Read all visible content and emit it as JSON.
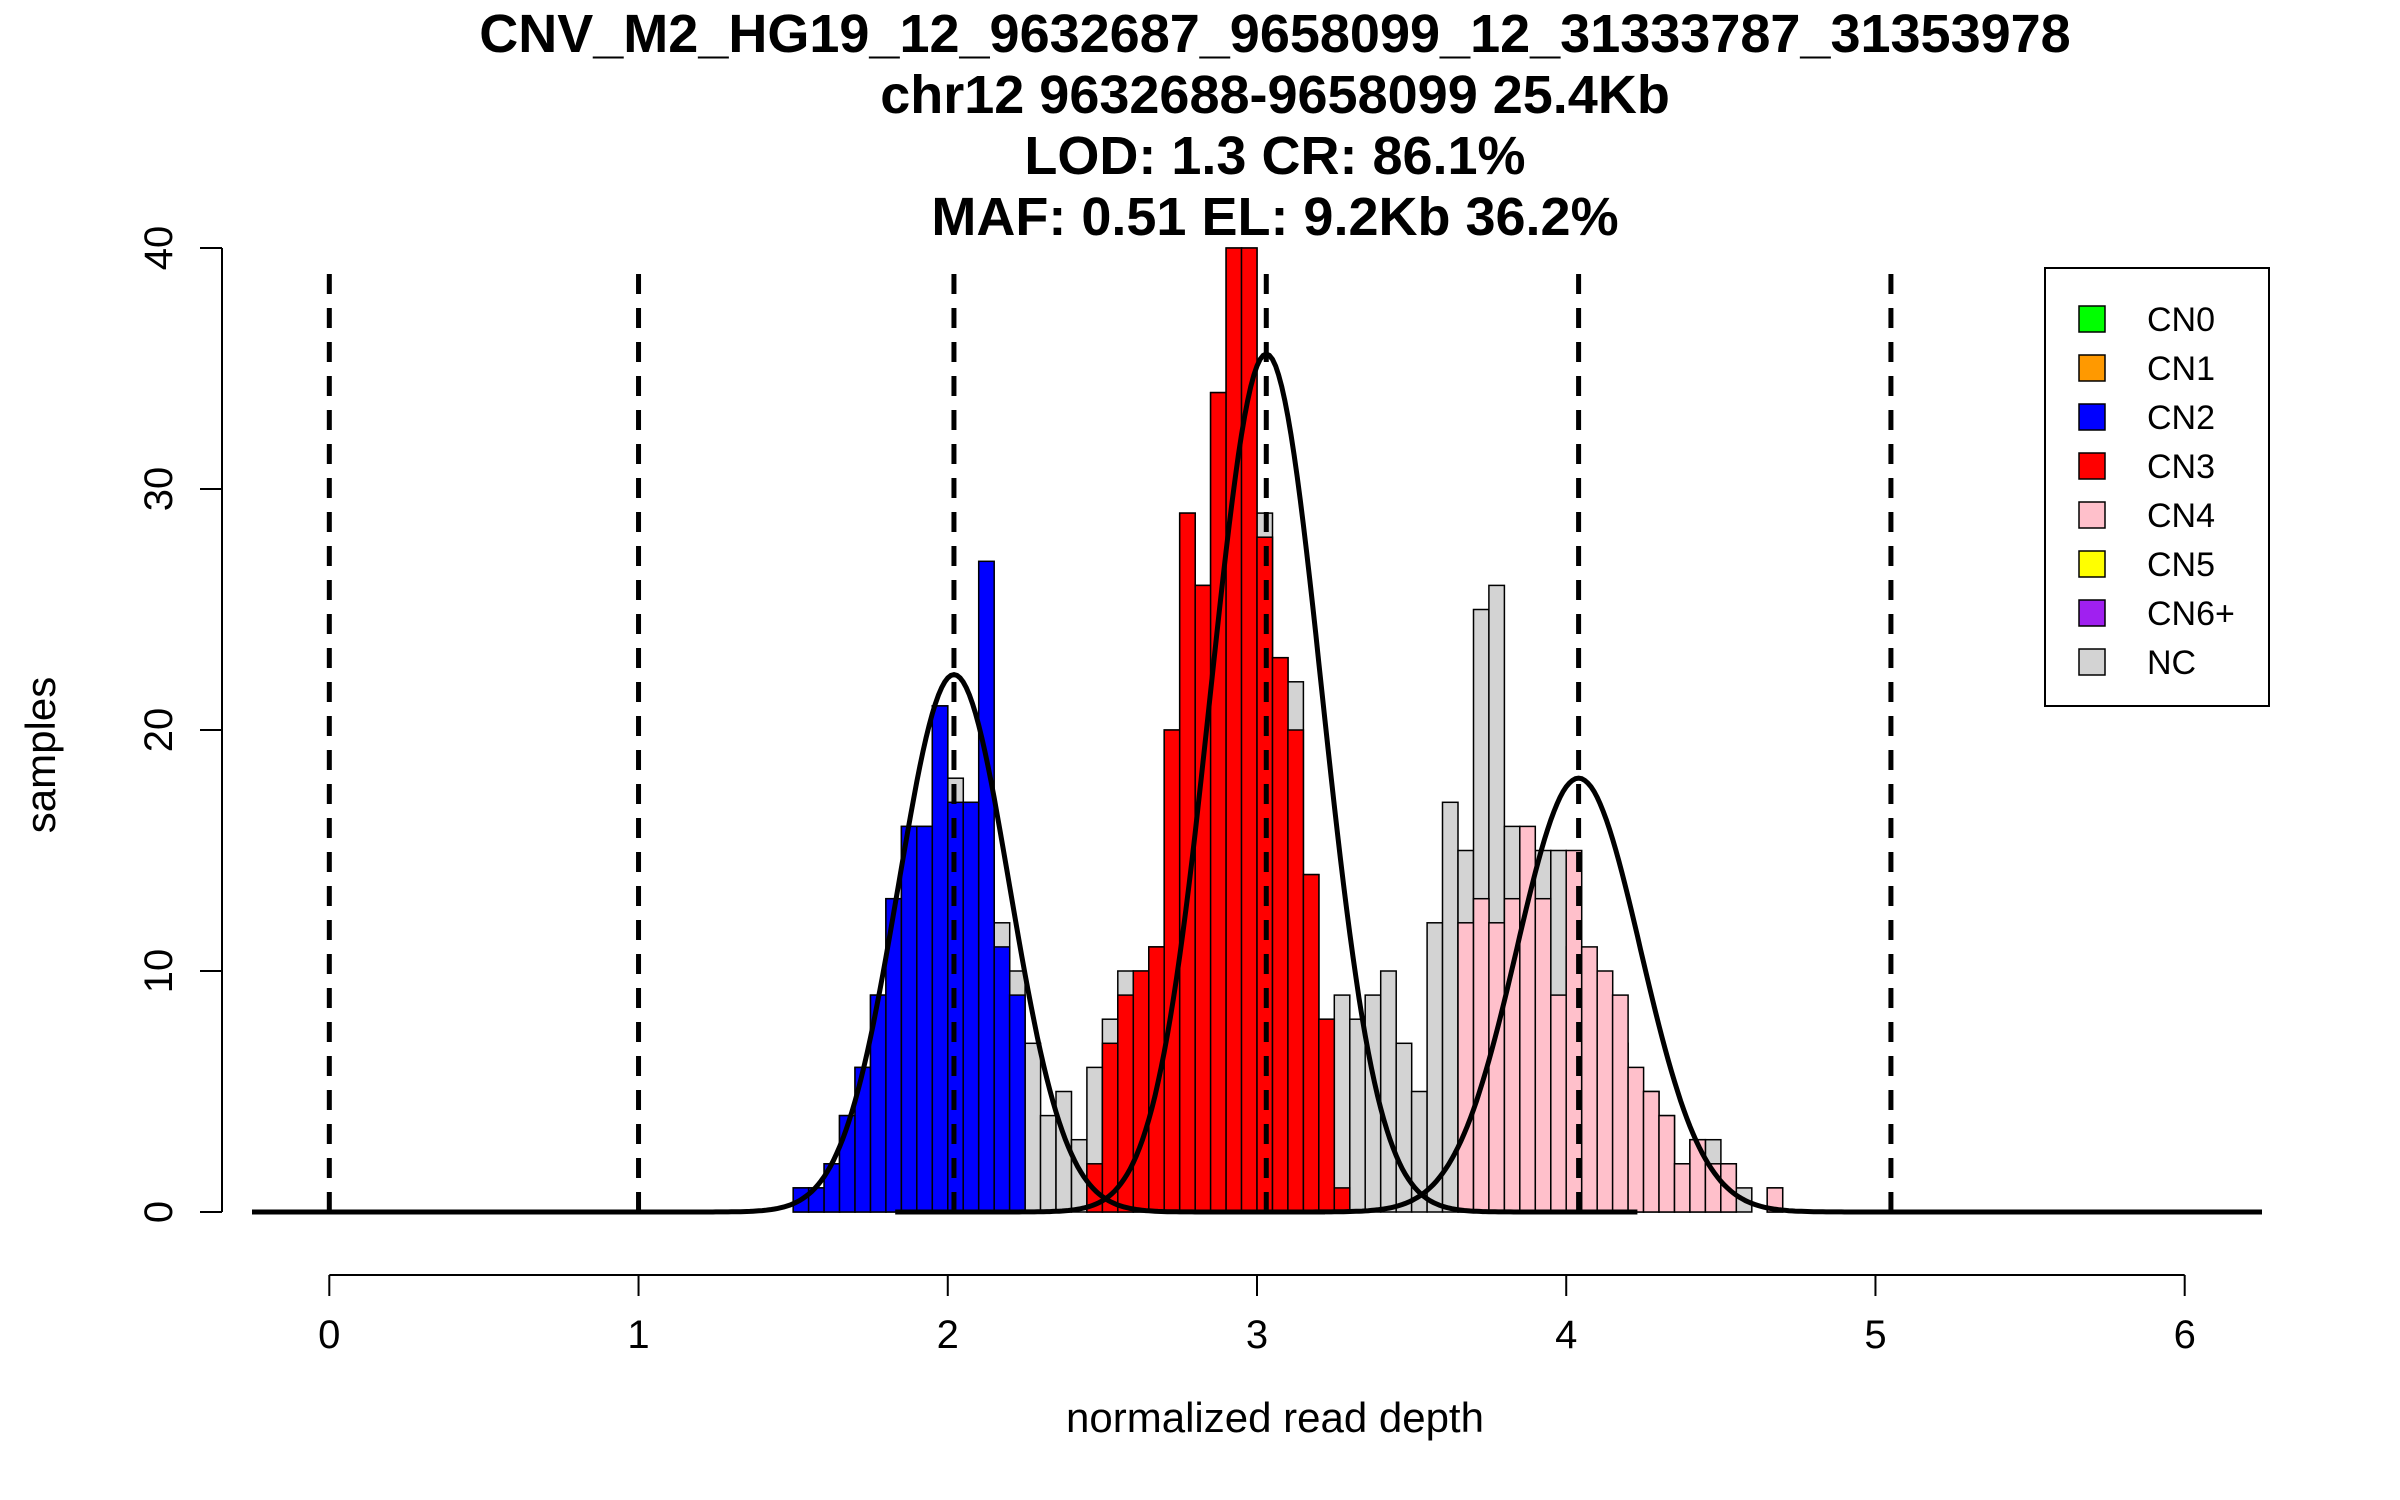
{
  "chart_data": {
    "type": "bar",
    "title_lines": [
      "CNV_M2_HG19_12_9632687_9658099_12_31333787_31353978",
      "chr12 9632688-9658099 25.4Kb",
      "LOD: 1.3 CR: 86.1%",
      "MAF: 0.51 EL: 9.2Kb 36.2%"
    ],
    "xlabel": "normalized read depth",
    "ylabel": "samples",
    "xlim": [
      -0.25,
      6.25
    ],
    "ylim": [
      0,
      40
    ],
    "x_ticks": [
      0,
      1,
      2,
      3,
      4,
      5,
      6
    ],
    "y_ticks": [
      0,
      10,
      20,
      30,
      40
    ],
    "bin_width": 0.05,
    "bin_start": 1.5,
    "reference_lines": [
      0,
      1,
      2.02,
      3.03,
      4.04,
      5.05
    ],
    "legend": {
      "position": "top-right",
      "entries": [
        {
          "label": "CN0",
          "color": "#00ff00"
        },
        {
          "label": "CN1",
          "color": "#ff9900"
        },
        {
          "label": "CN2",
          "color": "#0000ff"
        },
        {
          "label": "CN3",
          "color": "#ff0000"
        },
        {
          "label": "CN4",
          "color": "#ffc0cb"
        },
        {
          "label": "CN5",
          "color": "#ffff00"
        },
        {
          "label": "CN6+",
          "color": "#a020f0"
        },
        {
          "label": "NC",
          "color": "#d3d3d3"
        }
      ]
    },
    "series": [
      {
        "name": "NC",
        "color": "#d3d3d3",
        "values": [
          1,
          1,
          2,
          4,
          6,
          9,
          13,
          16,
          16,
          21,
          18,
          17,
          15,
          12,
          10,
          7,
          4,
          5,
          3,
          6,
          8,
          10,
          10,
          11,
          20,
          29,
          26,
          34,
          40,
          40,
          29,
          23,
          22,
          14,
          8,
          9,
          8,
          9,
          10,
          7,
          5,
          12,
          17,
          15,
          25,
          26,
          16,
          13,
          15,
          15,
          11,
          10,
          8,
          7,
          5,
          5,
          4,
          2,
          3,
          3,
          2,
          1,
          0,
          1
        ]
      },
      {
        "name": "CN2",
        "color": "#0000ff",
        "values": [
          1,
          1,
          2,
          4,
          6,
          9,
          13,
          16,
          16,
          21,
          17,
          17,
          27,
          11,
          9,
          0,
          0,
          0,
          0,
          0,
          0,
          0,
          0,
          0,
          0,
          0,
          0,
          0,
          0,
          0,
          0,
          0,
          0,
          0,
          0,
          0,
          0,
          0,
          0,
          0,
          0,
          0,
          0,
          0,
          0,
          0,
          0,
          0,
          0,
          0,
          0,
          0,
          0,
          0,
          0,
          0,
          0,
          0,
          0,
          0,
          0,
          0,
          0,
          0
        ]
      },
      {
        "name": "CN3",
        "color": "#ff0000",
        "values": [
          0,
          0,
          0,
          0,
          0,
          0,
          0,
          0,
          0,
          0,
          0,
          0,
          0,
          0,
          0,
          0,
          0,
          0,
          0,
          2,
          7,
          9,
          10,
          11,
          20,
          29,
          26,
          34,
          40,
          40,
          28,
          23,
          20,
          14,
          8,
          1,
          0,
          0,
          0,
          0,
          0,
          0,
          0,
          0,
          0,
          0,
          0,
          0,
          0,
          0,
          0,
          0,
          0,
          0,
          0,
          0,
          0,
          0,
          0,
          0,
          0,
          0,
          0,
          0
        ]
      },
      {
        "name": "CN4",
        "color": "#ffc0cb",
        "values": [
          0,
          0,
          0,
          0,
          0,
          0,
          0,
          0,
          0,
          0,
          0,
          0,
          0,
          0,
          0,
          0,
          0,
          0,
          0,
          0,
          0,
          0,
          0,
          0,
          0,
          0,
          0,
          0,
          0,
          0,
          0,
          0,
          0,
          0,
          0,
          0,
          0,
          0,
          0,
          0,
          0,
          0,
          0,
          12,
          13,
          12,
          13,
          16,
          13,
          9,
          15,
          11,
          10,
          9,
          6,
          5,
          4,
          2,
          3,
          2,
          2,
          0,
          0,
          1
        ]
      }
    ],
    "fitted_curves": [
      {
        "mean": 2.02,
        "sd": 0.18,
        "peak": 22.3
      },
      {
        "mean": 3.03,
        "sd": 0.18,
        "peak": 35.6
      },
      {
        "mean": 4.04,
        "sd": 0.2,
        "peak": 18.0
      }
    ]
  }
}
